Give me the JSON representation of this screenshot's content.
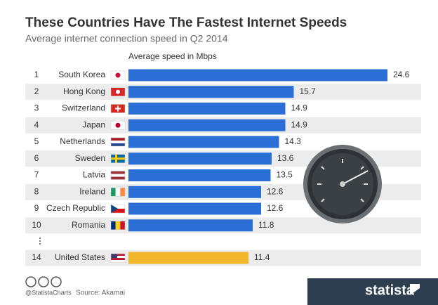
{
  "chart_data": {
    "type": "bar",
    "orientation": "horizontal",
    "title": "These Countries Have The Fastest Internet Speeds",
    "subtitle": "Average internet connection speed in Q2 2014",
    "axis_label": "Average speed in Mbps",
    "ranks": [
      "1",
      "2",
      "3",
      "4",
      "5",
      "6",
      "7",
      "8",
      "9",
      "10",
      "14"
    ],
    "categories": [
      "South Korea",
      "Hong Kong",
      "Switzerland",
      "Japan",
      "Netherlands",
      "Sweden",
      "Latvia",
      "Ireland",
      "Czech Republic",
      "Romania",
      "United States"
    ],
    "values": [
      24.6,
      15.7,
      14.9,
      14.9,
      14.3,
      13.6,
      13.5,
      12.6,
      12.6,
      11.8,
      11.4
    ],
    "colors": [
      "#2b6fd6",
      "#2b6fd6",
      "#2b6fd6",
      "#2b6fd6",
      "#2b6fd6",
      "#2b6fd6",
      "#2b6fd6",
      "#2b6fd6",
      "#2b6fd6",
      "#2b6fd6",
      "#f1b72c"
    ],
    "credit": "@StatistaCharts",
    "source": "Source: Akamai",
    "brand": "statista"
  }
}
